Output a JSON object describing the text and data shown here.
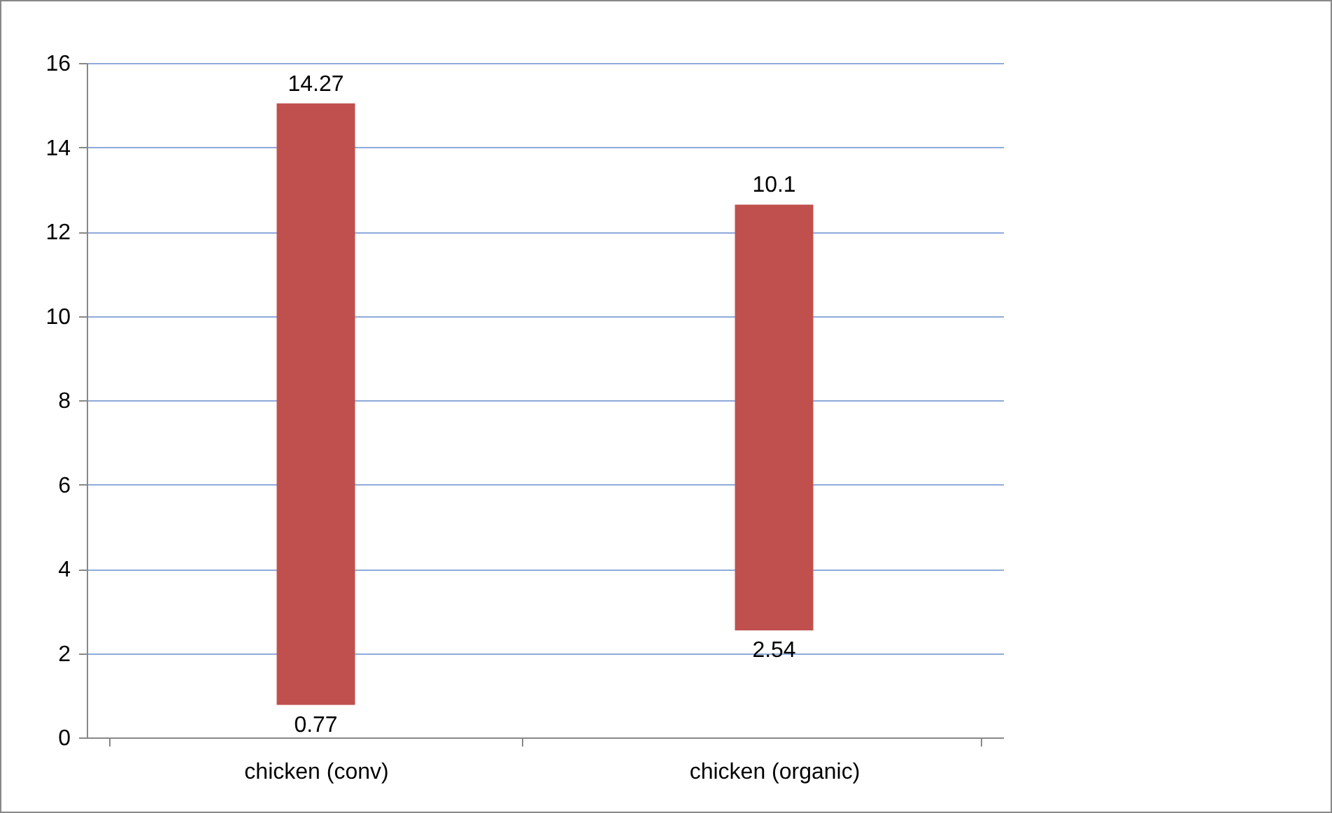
{
  "chart_data": {
    "type": "bar",
    "categories": [
      "chicken (conv)",
      "chicken (organic)"
    ],
    "values": [
      14.27,
      10.1
    ],
    "base": [
      0.77,
      2.54
    ],
    "value_labels": [
      "14.27",
      "10.1"
    ],
    "color": "#c0504d",
    "ylim": [
      0,
      16
    ],
    "yticks": [
      0,
      2,
      4,
      6,
      8,
      10,
      12,
      14,
      16
    ],
    "grid": "y",
    "annotations": [
      {
        "text": "0.77",
        "x": "chicken (conv)",
        "y": 0.77
      },
      {
        "text": "2.54",
        "x": "chicken (organic)",
        "y": 2.54
      }
    ]
  }
}
